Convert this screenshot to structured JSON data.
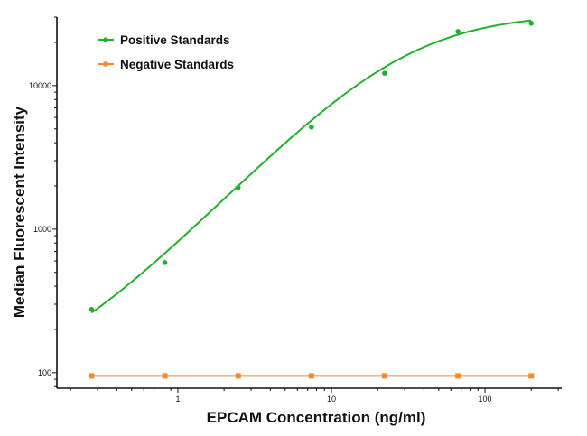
{
  "chart_data": {
    "type": "scatter",
    "title": "",
    "xlabel": "EPCAM Concentration (ng/ml)",
    "ylabel": "Median Fluorescent Intensity",
    "xscale": "log",
    "yscale": "log",
    "xlim": [
      0.163,
      316
    ],
    "ylim": [
      78,
      30000
    ],
    "xticks": [
      1,
      10,
      100
    ],
    "xtick_labels": [
      "1",
      "10",
      "100"
    ],
    "yticks": [
      100,
      1000,
      10000
    ],
    "ytick_labels": [
      "100",
      "1000",
      "10000"
    ],
    "grid": false,
    "legend_position": "top-left",
    "series": [
      {
        "name": "Positive Standards",
        "color": "#22b02a",
        "marker": "circle",
        "fit": "sigmoidal curve",
        "x": [
          0.274,
          0.823,
          2.47,
          7.41,
          22.2,
          66.7,
          200
        ],
        "y": [
          276,
          585,
          1950,
          5140,
          12200,
          23800,
          27200
        ]
      },
      {
        "name": "Negative Standards",
        "color": "#f28a2e",
        "marker": "square",
        "fit": "line",
        "x": [
          0.274,
          0.823,
          2.47,
          7.41,
          22.2,
          66.7,
          200
        ],
        "y": [
          95,
          95,
          95,
          95,
          95,
          95,
          95
        ]
      }
    ]
  }
}
